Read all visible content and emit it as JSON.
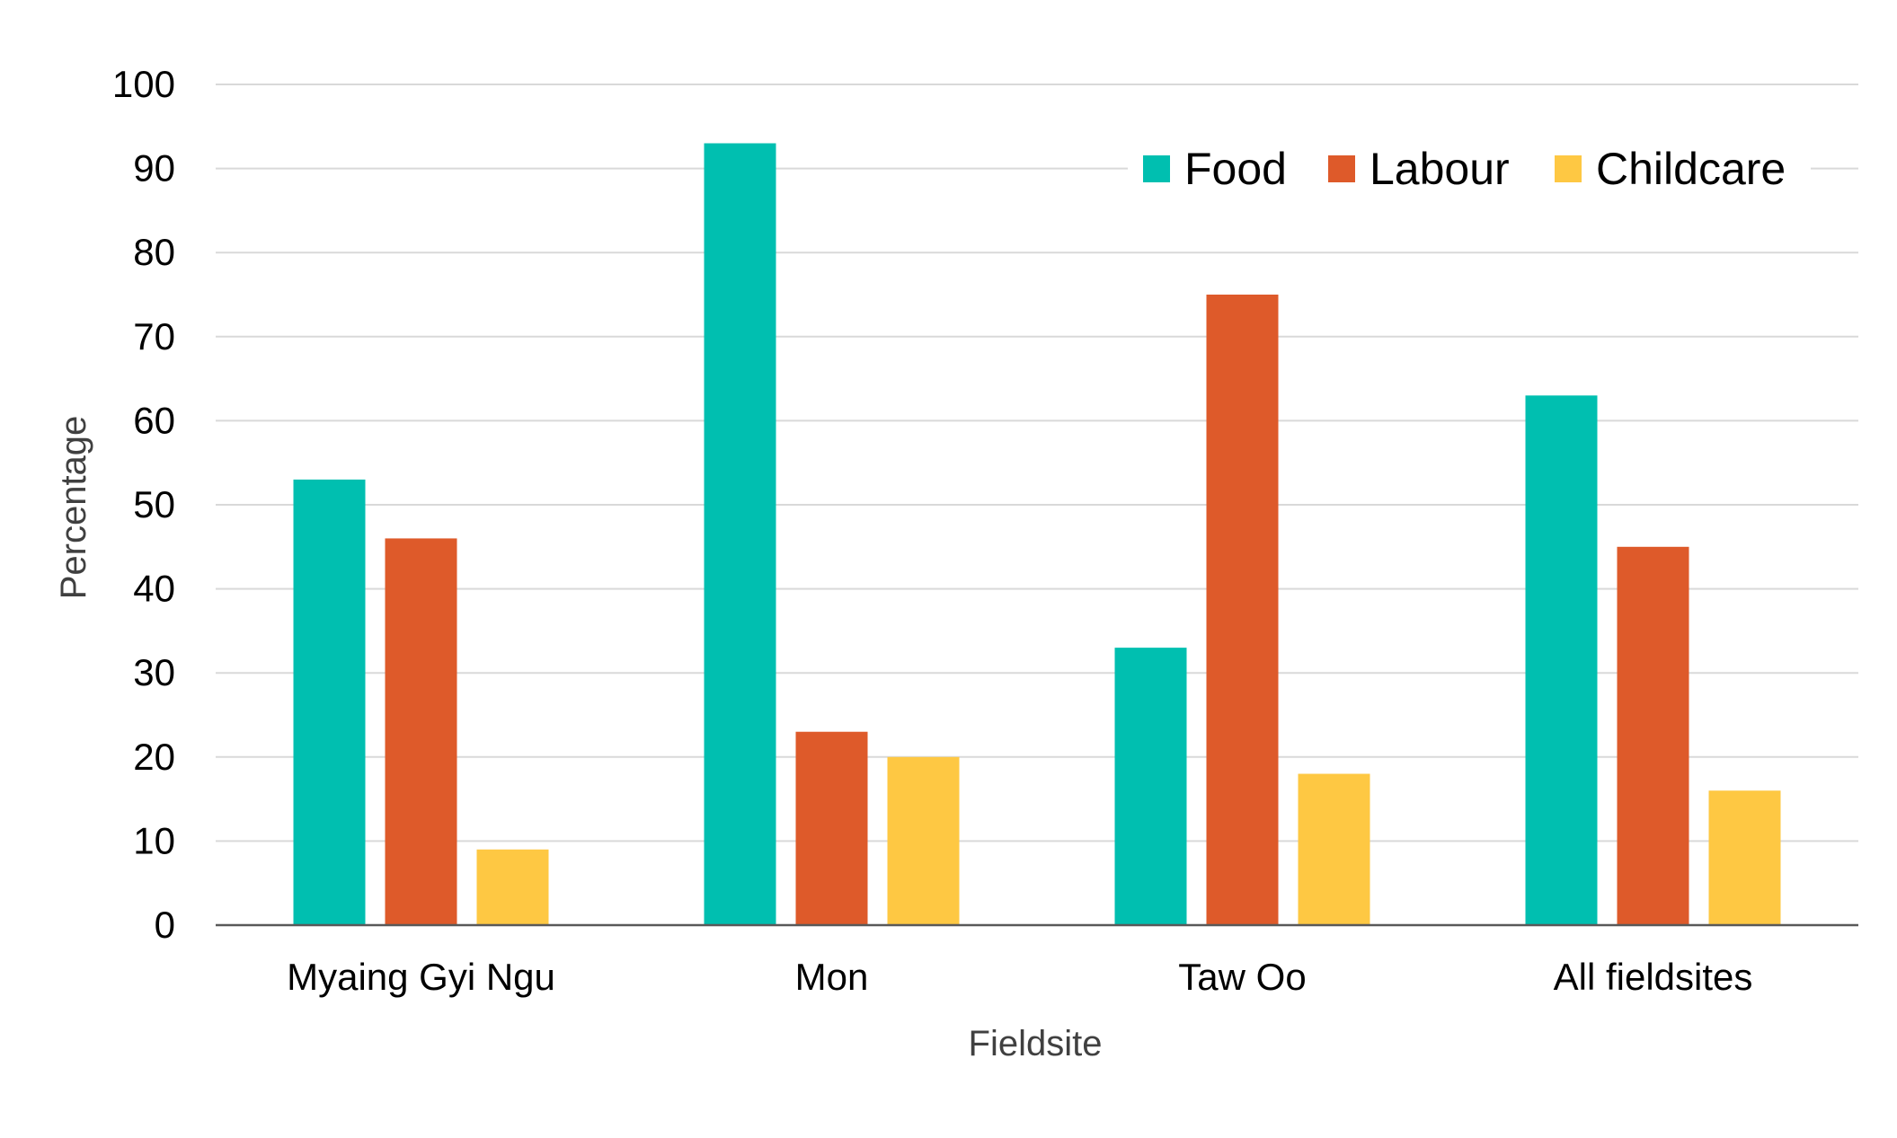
{
  "chart_data": {
    "type": "bar",
    "title": "",
    "xlabel": "Fieldsite",
    "ylabel": "Percentage",
    "categories": [
      "Myaing Gyi Ngu",
      "Mon",
      "Taw Oo",
      "All fieldsites"
    ],
    "series": [
      {
        "name": "Food",
        "color": "#00BFB0",
        "values": [
          53,
          93,
          33,
          63
        ]
      },
      {
        "name": "Labour",
        "color": "#DE5A2A",
        "values": [
          46,
          23,
          75,
          45
        ]
      },
      {
        "name": "Childcare",
        "color": "#FEC843",
        "values": [
          9,
          20,
          18,
          16
        ]
      }
    ],
    "ylim": [
      0,
      100
    ],
    "yticks": [
      0,
      10,
      20,
      30,
      40,
      50,
      60,
      70,
      80,
      90,
      100
    ],
    "grid": true,
    "legend_position": "top-right",
    "colors": {
      "gridline": "#D9D9D9",
      "axis": "#595959"
    }
  }
}
